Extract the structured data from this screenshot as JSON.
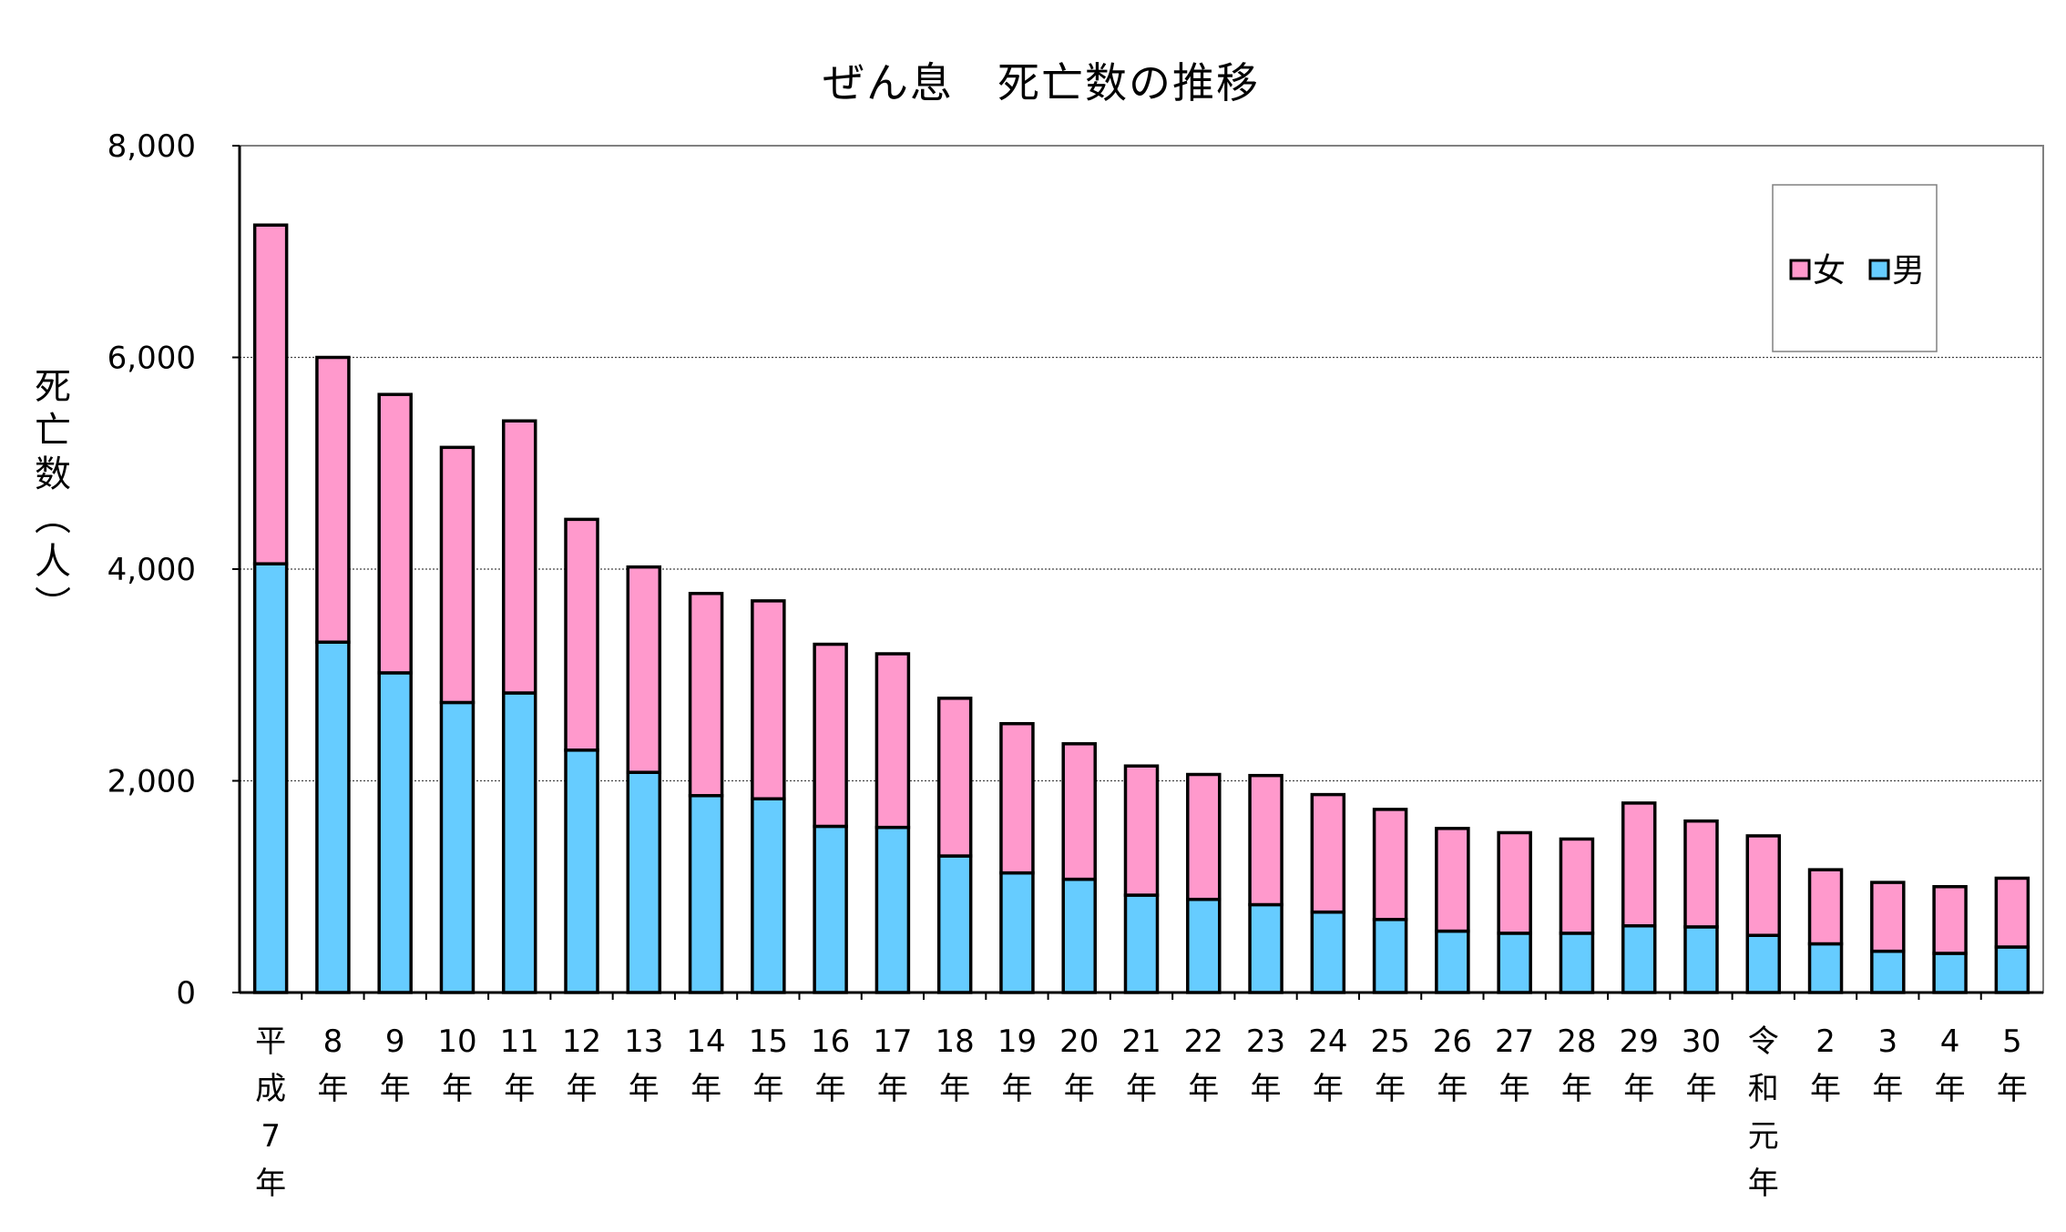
{
  "chart_data": {
    "type": "bar",
    "stacked": true,
    "title": "ぜん息　死亡数の推移",
    "ylabel": "死亡数（人）",
    "ylim": [
      0,
      8000
    ],
    "yticks": [
      "0",
      "2,000",
      "4,000",
      "6,000",
      "8,000"
    ],
    "ytick_values": [
      0,
      2000,
      4000,
      6000,
      8000
    ],
    "grid": "horizontal dotted",
    "legend_position": "top-right",
    "categories": [
      [
        "平",
        "成",
        "7",
        "年"
      ],
      [
        "8",
        "年"
      ],
      [
        "9",
        "年"
      ],
      [
        "10",
        "年"
      ],
      [
        "11",
        "年"
      ],
      [
        "12",
        "年"
      ],
      [
        "13",
        "年"
      ],
      [
        "14",
        "年"
      ],
      [
        "15",
        "年"
      ],
      [
        "16",
        "年"
      ],
      [
        "17",
        "年"
      ],
      [
        "18",
        "年"
      ],
      [
        "19",
        "年"
      ],
      [
        "20",
        "年"
      ],
      [
        "21",
        "年"
      ],
      [
        "22",
        "年"
      ],
      [
        "23",
        "年"
      ],
      [
        "24",
        "年"
      ],
      [
        "25",
        "年"
      ],
      [
        "26",
        "年"
      ],
      [
        "27",
        "年"
      ],
      [
        "28",
        "年"
      ],
      [
        "29",
        "年"
      ],
      [
        "30",
        "年"
      ],
      [
        "令",
        "和",
        "元",
        "年"
      ],
      [
        "2",
        "年"
      ],
      [
        "3",
        "年"
      ],
      [
        "4",
        "年"
      ],
      [
        "5",
        "年"
      ]
    ],
    "series": [
      {
        "name": "男",
        "color": "#66ccff",
        "values": [
          4050,
          3310,
          3020,
          2740,
          2830,
          2290,
          2080,
          1860,
          1830,
          1570,
          1560,
          1290,
          1130,
          1070,
          920,
          880,
          830,
          760,
          690,
          580,
          560,
          560,
          630,
          620,
          540,
          460,
          390,
          370,
          430
        ]
      },
      {
        "name": "女",
        "color": "#ff99cc",
        "values": [
          3200,
          2690,
          2630,
          2410,
          2570,
          2180,
          1940,
          1910,
          1870,
          1720,
          1640,
          1490,
          1410,
          1280,
          1220,
          1180,
          1220,
          1110,
          1040,
          970,
          950,
          890,
          1160,
          1000,
          940,
          700,
          650,
          630,
          650
        ]
      }
    ],
    "legend_order": [
      "女",
      "男"
    ]
  }
}
